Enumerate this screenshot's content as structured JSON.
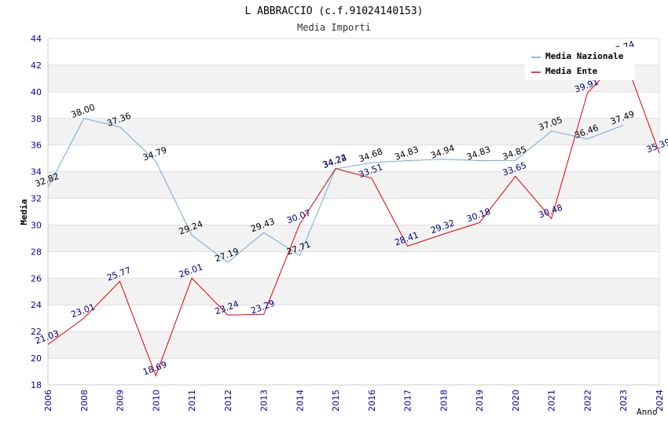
{
  "chart_data": {
    "type": "line",
    "title": "L ABBRACCIO (c.f.91024140153)",
    "subtitle": "Media Importi",
    "xlabel": "Anno",
    "ylabel": "Media",
    "ylim": [
      18,
      44
    ],
    "yticks": [
      18,
      20,
      22,
      24,
      26,
      28,
      30,
      32,
      34,
      36,
      38,
      40,
      42,
      44
    ],
    "categories": [
      "2006",
      "2008",
      "2009",
      "2010",
      "2011",
      "2012",
      "2013",
      "2014",
      "2015",
      "2016",
      "2017",
      "2018",
      "2019",
      "2020",
      "2021",
      "2022",
      "2023",
      "2024"
    ],
    "legend_position": "top-right",
    "series": [
      {
        "name": "Media Nazionale",
        "color": "#6fa8dc",
        "values": [
          32.82,
          38.0,
          37.36,
          34.79,
          29.24,
          27.19,
          29.43,
          27.71,
          34.22,
          34.68,
          34.83,
          34.94,
          34.83,
          34.85,
          37.05,
          36.46,
          37.49,
          null
        ],
        "labels": [
          "32.82",
          "38.00",
          "37.36",
          "34.79",
          "29.24",
          "27.19",
          "29.43",
          "27.71",
          "34.22",
          "34.68",
          "34.83",
          "34.94",
          "34.83",
          "34.85",
          "37.05",
          "36.46",
          "37.49",
          ""
        ]
      },
      {
        "name": "Media Ente",
        "color": "#e00000",
        "values": [
          21.03,
          23.01,
          25.77,
          18.69,
          26.01,
          23.24,
          23.29,
          30.07,
          34.24,
          33.51,
          28.41,
          29.32,
          30.18,
          33.65,
          30.48,
          39.91,
          42.74,
          35.39
        ],
        "labels": [
          "21.03",
          "23.01",
          "25.77",
          "18.69",
          "26.01",
          "23.24",
          "23.29",
          "30.07",
          "34.24",
          "33.51",
          "28.41",
          "29.32",
          "30.18",
          "33.65",
          "30.48",
          "39.91",
          "42.74",
          "35.39"
        ]
      }
    ]
  }
}
